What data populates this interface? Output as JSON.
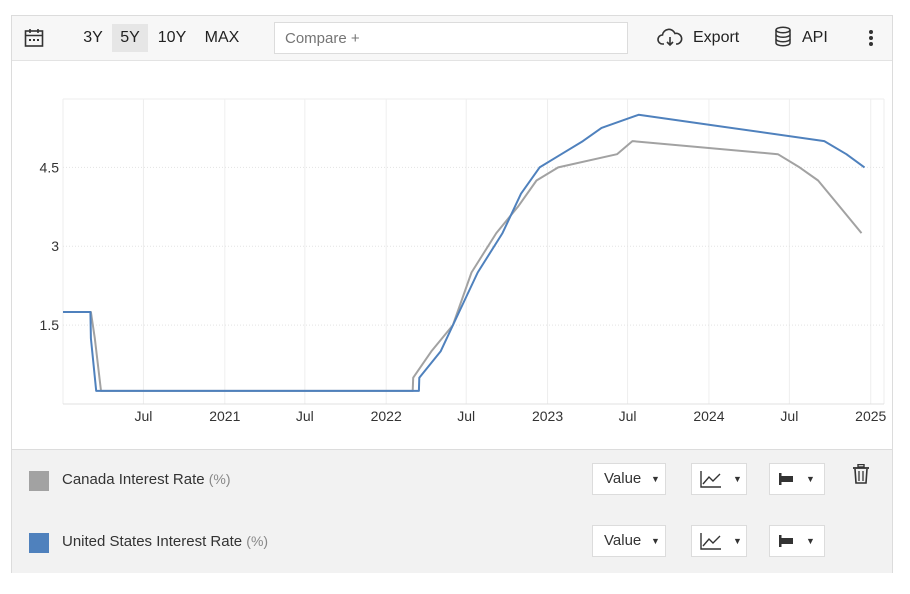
{
  "toolbar": {
    "ranges": [
      "3Y",
      "5Y",
      "10Y",
      "MAX"
    ],
    "active_range": "5Y",
    "compare_placeholder": "Compare +",
    "export_label": "Export",
    "api_label": "API",
    "icons": [
      "calendar-icon",
      "cloud-download-icon",
      "database-icon",
      "more-vertical-icon"
    ]
  },
  "legend": {
    "rows": [
      {
        "name": "Canada Interest Rate",
        "unit": "(%)",
        "color": "#a2a2a2",
        "value_label": "Value",
        "has_delete": true
      },
      {
        "name": "United States Interest Rate",
        "unit": "(%)",
        "color": "#4f81bd",
        "value_label": "Value",
        "has_delete": false
      }
    ]
  },
  "chart_data": {
    "type": "line",
    "title": "",
    "xlabel": "",
    "ylabel": "",
    "x_range": [
      "2020-01-01",
      "2025-01-31"
    ],
    "ylim": [
      0,
      5.8
    ],
    "y_ticks": [
      1.5,
      3,
      4.5
    ],
    "y_tick_labels": [
      "1.5",
      "3",
      "4.5"
    ],
    "x_ticks": [
      "2020-07-01",
      "2021-01-01",
      "2021-07-01",
      "2022-01-01",
      "2022-07-01",
      "2023-01-01",
      "2023-07-01",
      "2024-01-01",
      "2024-07-01",
      "2025-01-01"
    ],
    "x_tick_labels": [
      "Jul",
      "2021",
      "Jul",
      "2022",
      "Jul",
      "2023",
      "Jul",
      "2024",
      "Jul",
      "2025"
    ],
    "grid": true,
    "legend_position": "below",
    "series": [
      {
        "name": "Canada Interest Rate",
        "color": "#a2a2a2",
        "points": [
          [
            "2020-01-01",
            1.75
          ],
          [
            "2020-03-04",
            1.75
          ],
          [
            "2020-03-13",
            1.25
          ],
          [
            "2020-03-27",
            0.25
          ],
          [
            "2022-03-02",
            0.25
          ],
          [
            "2022-03-03",
            0.5
          ],
          [
            "2022-04-13",
            1.0
          ],
          [
            "2022-06-01",
            1.5
          ],
          [
            "2022-07-13",
            2.5
          ],
          [
            "2022-09-07",
            3.25
          ],
          [
            "2022-10-26",
            3.75
          ],
          [
            "2022-12-07",
            4.25
          ],
          [
            "2023-01-25",
            4.5
          ],
          [
            "2023-06-07",
            4.75
          ],
          [
            "2023-07-12",
            5.0
          ],
          [
            "2024-06-05",
            4.75
          ],
          [
            "2024-07-24",
            4.5
          ],
          [
            "2024-09-04",
            4.25
          ],
          [
            "2024-10-23",
            3.75
          ],
          [
            "2024-12-11",
            3.25
          ]
        ]
      },
      {
        "name": "United States Interest Rate",
        "color": "#4f81bd",
        "points": [
          [
            "2020-01-01",
            1.75
          ],
          [
            "2020-03-03",
            1.75
          ],
          [
            "2020-03-04",
            1.25
          ],
          [
            "2020-03-16",
            0.25
          ],
          [
            "2022-03-16",
            0.25
          ],
          [
            "2022-03-17",
            0.5
          ],
          [
            "2022-05-04",
            1.0
          ],
          [
            "2022-06-15",
            1.75
          ],
          [
            "2022-07-27",
            2.5
          ],
          [
            "2022-09-21",
            3.25
          ],
          [
            "2022-11-02",
            4.0
          ],
          [
            "2022-12-14",
            4.5
          ],
          [
            "2023-02-01",
            4.75
          ],
          [
            "2023-03-22",
            5.0
          ],
          [
            "2023-05-03",
            5.25
          ],
          [
            "2023-07-26",
            5.5
          ],
          [
            "2024-09-18",
            5.0
          ],
          [
            "2024-11-07",
            4.75
          ],
          [
            "2024-12-18",
            4.5
          ]
        ]
      }
    ]
  }
}
